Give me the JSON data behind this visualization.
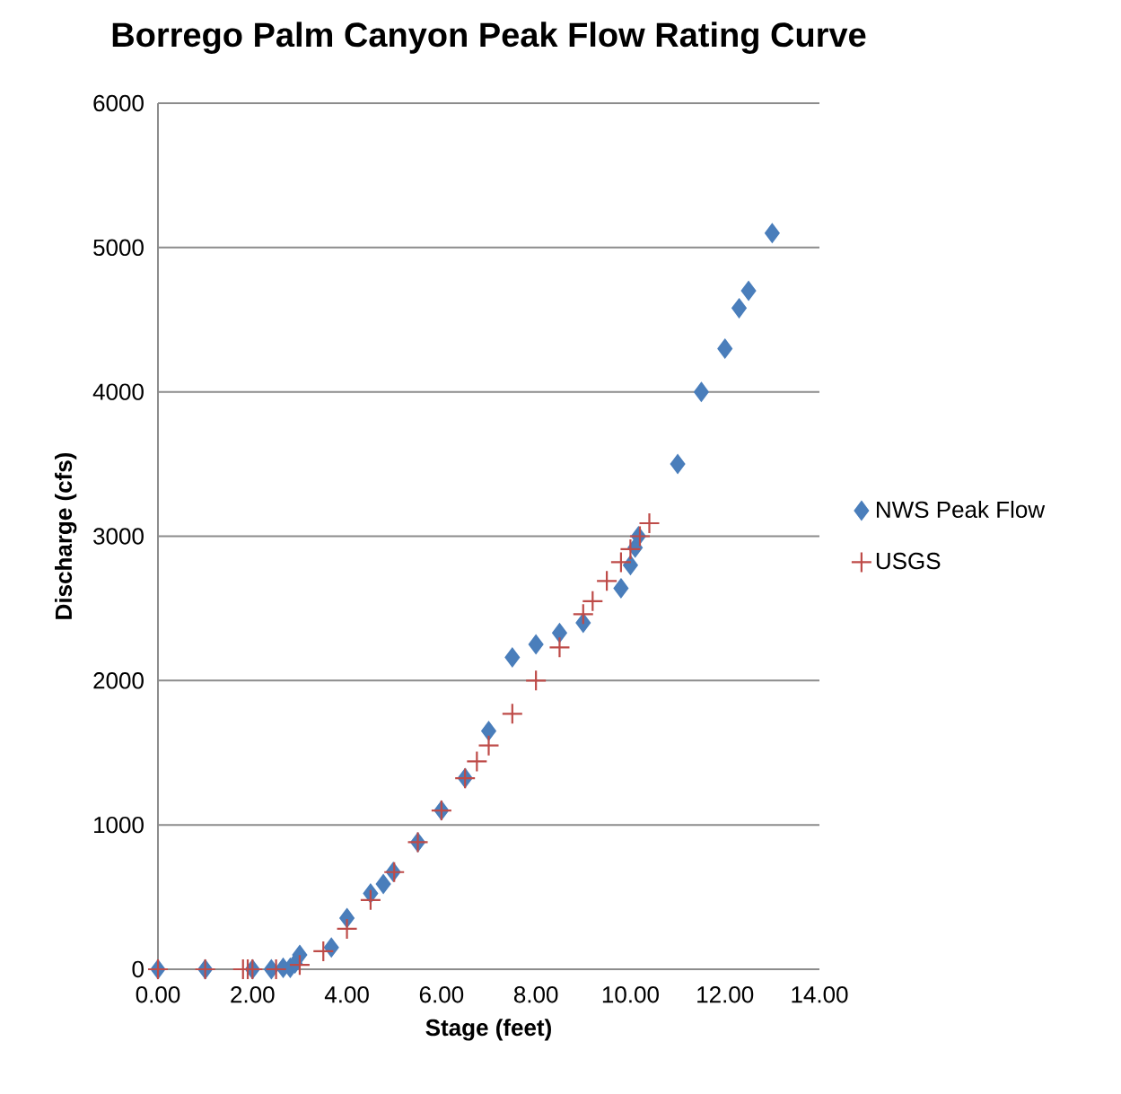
{
  "chart_data": {
    "type": "scatter",
    "title": "Borrego Palm Canyon Peak Flow Rating Curve",
    "xlabel": "Stage (feet)",
    "ylabel": "Discharge (cfs)",
    "xlim": [
      0,
      14
    ],
    "ylim": [
      0,
      6000
    ],
    "xticks": [
      {
        "value": 0,
        "label": "0.00"
      },
      {
        "value": 2,
        "label": "2.00"
      },
      {
        "value": 4,
        "label": "4.00"
      },
      {
        "value": 6,
        "label": "6.00"
      },
      {
        "value": 8,
        "label": "8.00"
      },
      {
        "value": 10,
        "label": "10.00"
      },
      {
        "value": 12,
        "label": "12.00"
      },
      {
        "value": 14,
        "label": "14.00"
      }
    ],
    "yticks": [
      0,
      1000,
      2000,
      3000,
      4000,
      5000,
      6000
    ],
    "grid": "y",
    "legend": "right",
    "series": [
      {
        "name": "NWS Peak Flow",
        "color": "#4a7ebb",
        "marker": "diamond",
        "x": [
          0,
          1,
          2,
          2.4,
          2.65,
          2.8,
          2.9,
          3,
          3.67,
          4,
          4.5,
          4.77,
          4.98,
          5.5,
          6,
          6.5,
          7,
          7.5,
          8,
          8.5,
          9,
          9.8,
          10,
          10.1,
          10.17,
          11,
          11.5,
          12,
          12.3,
          12.5,
          13
        ],
        "values": [
          0,
          0,
          0,
          0,
          10,
          10,
          40,
          100,
          150,
          355,
          525,
          590,
          675,
          880,
          1100,
          1325,
          1650,
          2160,
          2250,
          2330,
          2400,
          2640,
          2800,
          2920,
          3000,
          3500,
          4000,
          4300,
          4580,
          4700,
          5100
        ]
      },
      {
        "name": "USGS",
        "color": "#be4b48",
        "marker": "cross",
        "x": [
          0,
          1,
          1.8,
          1.9,
          2,
          2.5,
          3,
          3.5,
          4,
          4.5,
          5,
          5.5,
          6,
          6.5,
          6.75,
          7,
          7.5,
          8,
          8.5,
          9,
          9.2,
          9.5,
          9.8,
          10,
          10.2,
          10.4
        ],
        "values": [
          0,
          0,
          0,
          0,
          0,
          0,
          30,
          125,
          280,
          480,
          673,
          880,
          1100,
          1323,
          1440,
          1550,
          1770,
          2000,
          2230,
          2460,
          2550,
          2690,
          2820,
          2910,
          3000,
          3090
        ]
      }
    ]
  }
}
